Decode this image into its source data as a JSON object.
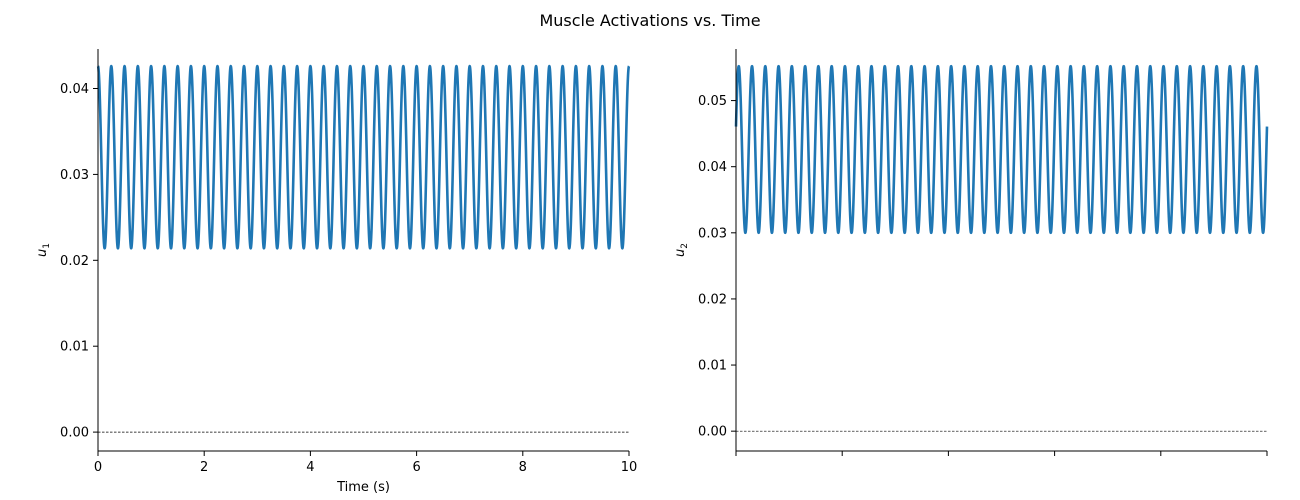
{
  "figure": {
    "title": "Muscle Activations vs. Time"
  },
  "chart_data": [
    {
      "type": "line",
      "title": "",
      "xlabel": "Time (s)",
      "ylabel_base": "u",
      "ylabel_sub": "1",
      "xlim": [
        0,
        10
      ],
      "ylim": [
        -0.0022,
        0.0446
      ],
      "x_ticks": [
        0,
        2,
        4,
        6,
        8,
        10
      ],
      "x_tick_labels": [
        "0",
        "2",
        "4",
        "6",
        "8",
        "10"
      ],
      "y_ticks": [
        0.0,
        0.01,
        0.02,
        0.03,
        0.04
      ],
      "y_tick_labels": [
        "0.00",
        "0.01",
        "0.02",
        "0.03",
        "0.04"
      ],
      "reference_line": {
        "y": 0,
        "style": "dashed"
      },
      "grid": false,
      "series": [
        {
          "color": "#1f77b4",
          "function": "sinusoid",
          "offset": 0.032,
          "amplitude": 0.0106,
          "frequency_hz": 4.0,
          "phase_deg": 90,
          "peak": 0.0426,
          "trough": 0.0214,
          "cycles_shown": 40
        }
      ]
    },
    {
      "type": "line",
      "title": "",
      "xlabel": "",
      "ylabel_base": "u",
      "ylabel_sub": "2",
      "xlim": [
        0,
        10
      ],
      "ylim": [
        -0.003,
        0.0578
      ],
      "x_ticks": [
        0,
        2,
        4,
        6,
        8,
        10
      ],
      "x_tick_labels": [
        "",
        "",
        "",
        "",
        "",
        ""
      ],
      "y_ticks": [
        0.0,
        0.01,
        0.02,
        0.03,
        0.04,
        0.05
      ],
      "y_tick_labels": [
        "0.00",
        "0.01",
        "0.02",
        "0.03",
        "0.04",
        "0.05"
      ],
      "reference_line": {
        "y": 0,
        "style": "dashed"
      },
      "grid": false,
      "series": [
        {
          "color": "#1f77b4",
          "function": "sinusoid",
          "offset": 0.0426,
          "amplitude": 0.0126,
          "frequency_hz": 4.0,
          "phase_deg": 16,
          "peak": 0.0552,
          "trough": 0.03,
          "cycles_shown": 40
        }
      ]
    }
  ]
}
